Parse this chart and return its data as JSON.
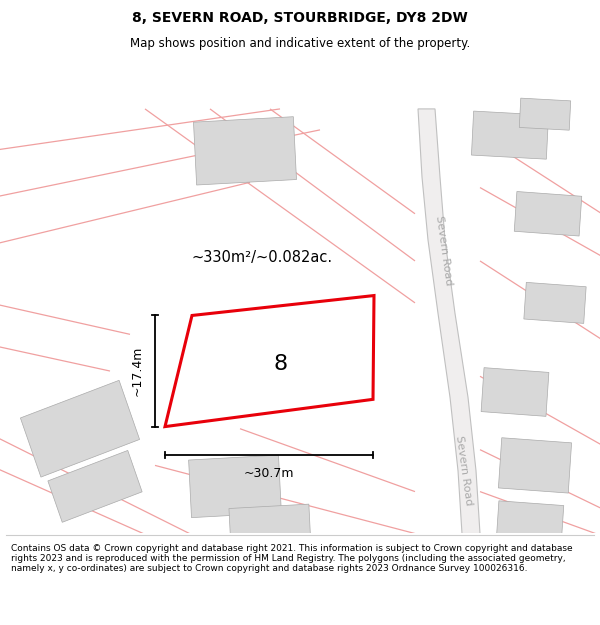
{
  "title": "8, SEVERN ROAD, STOURBRIDGE, DY8 2DW",
  "subtitle": "Map shows position and indicative extent of the property.",
  "area_label": "~330m²/~0.082ac.",
  "width_label": "~30.7m",
  "height_label": "~17.4m",
  "house_number": "8",
  "road_label_top": "Severn Road",
  "road_label_bottom": "Severn Road",
  "footer": "Contains OS data © Crown copyright and database right 2021. This information is subject to Crown copyright and database rights 2023 and is reproduced with the permission of HM Land Registry. The polygons (including the associated geometry, namely x, y co-ordinates) are subject to Crown copyright and database rights 2023 Ordnance Survey 100026316.",
  "map_bg": "#ffffff",
  "plot_color": "#e8000a",
  "building_color": "#d8d8d8",
  "building_edge": "#aaaaaa",
  "road_band_color": "#f0eeee",
  "road_band_edge": "#c0c0c0",
  "pink_line_color": "#f0a0a0",
  "dim_color": "#000000",
  "road_text_color": "#aaaaaa",
  "title_fontsize": 10,
  "subtitle_fontsize": 8.5,
  "footer_fontsize": 6.5
}
